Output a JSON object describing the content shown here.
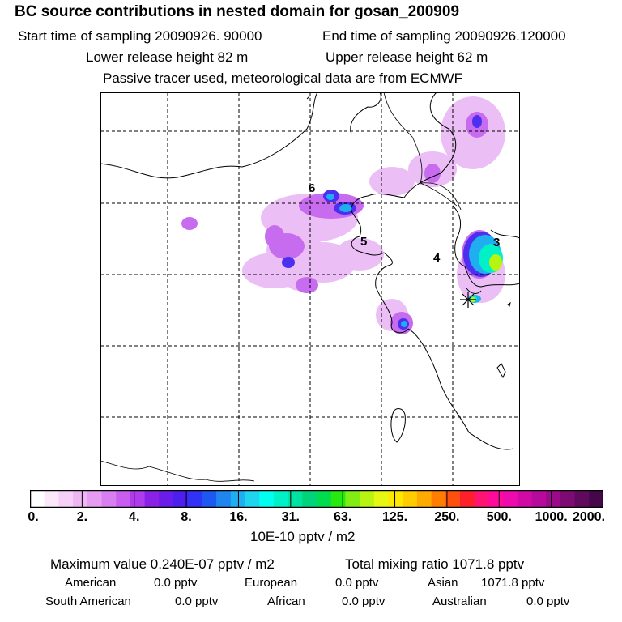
{
  "header": {
    "title": "BC  source contributions in nested domain for gosan_200909",
    "start_time": "Start time of sampling 20090926. 90000",
    "end_time": "End time of sampling 20090926.120000",
    "lower_height": "Lower release height   82 m",
    "upper_height": "Upper release height   62 m",
    "tracer_note": "Passive tracer used, meteorological data are from ECMWF"
  },
  "map": {
    "region_labels": [
      "6",
      "5",
      "4",
      "3"
    ],
    "receptor": "gosan"
  },
  "colorbar": {
    "colors": [
      "#ffffff",
      "#fbe8fb",
      "#f6d0f6",
      "#efb6f4",
      "#e59df2",
      "#d77ef0",
      "#c85dee",
      "#ae3bec",
      "#8a22e6",
      "#6a1de8",
      "#4c1fef",
      "#3032f5",
      "#1e58f3",
      "#1f86f0",
      "#1faff0",
      "#1ed4ee",
      "#00ffee",
      "#00f0c8",
      "#00e2a0",
      "#00d47a",
      "#00dc4c",
      "#27e80f",
      "#80ee12",
      "#b8f412",
      "#e6f812",
      "#ffe800",
      "#ffcc00",
      "#ffaa00",
      "#ff7e00",
      "#ff5010",
      "#ff1f2a",
      "#ff1474",
      "#ff0a9c",
      "#ef0aae",
      "#d10aa6",
      "#b60a9a",
      "#9a0a8a",
      "#7e0a74",
      "#600a5e",
      "#44084a"
    ],
    "tick_labels": [
      "0.",
      "2.",
      "4.",
      "8.",
      "16.",
      "31.",
      "63.",
      "125.",
      "250.",
      "500.",
      "1000.",
      "2000."
    ],
    "units": "10E-10 pptv / m2"
  },
  "stats": {
    "max_value": "Maximum value  0.240E-07 pptv / m2",
    "total_mixing": "Total mixing ratio     1071.8 pptv",
    "american_label": "American",
    "american_value": "0.0 pptv",
    "european_label": "European",
    "european_value": "0.0 pptv",
    "asian_label": "Asian",
    "asian_value": "1071.8 pptv",
    "south_american_label": "South American",
    "south_american_value": "0.0 pptv",
    "african_label": "African",
    "african_value": "0.0 pptv",
    "australian_label": "Australian",
    "australian_value": "0.0 pptv"
  }
}
